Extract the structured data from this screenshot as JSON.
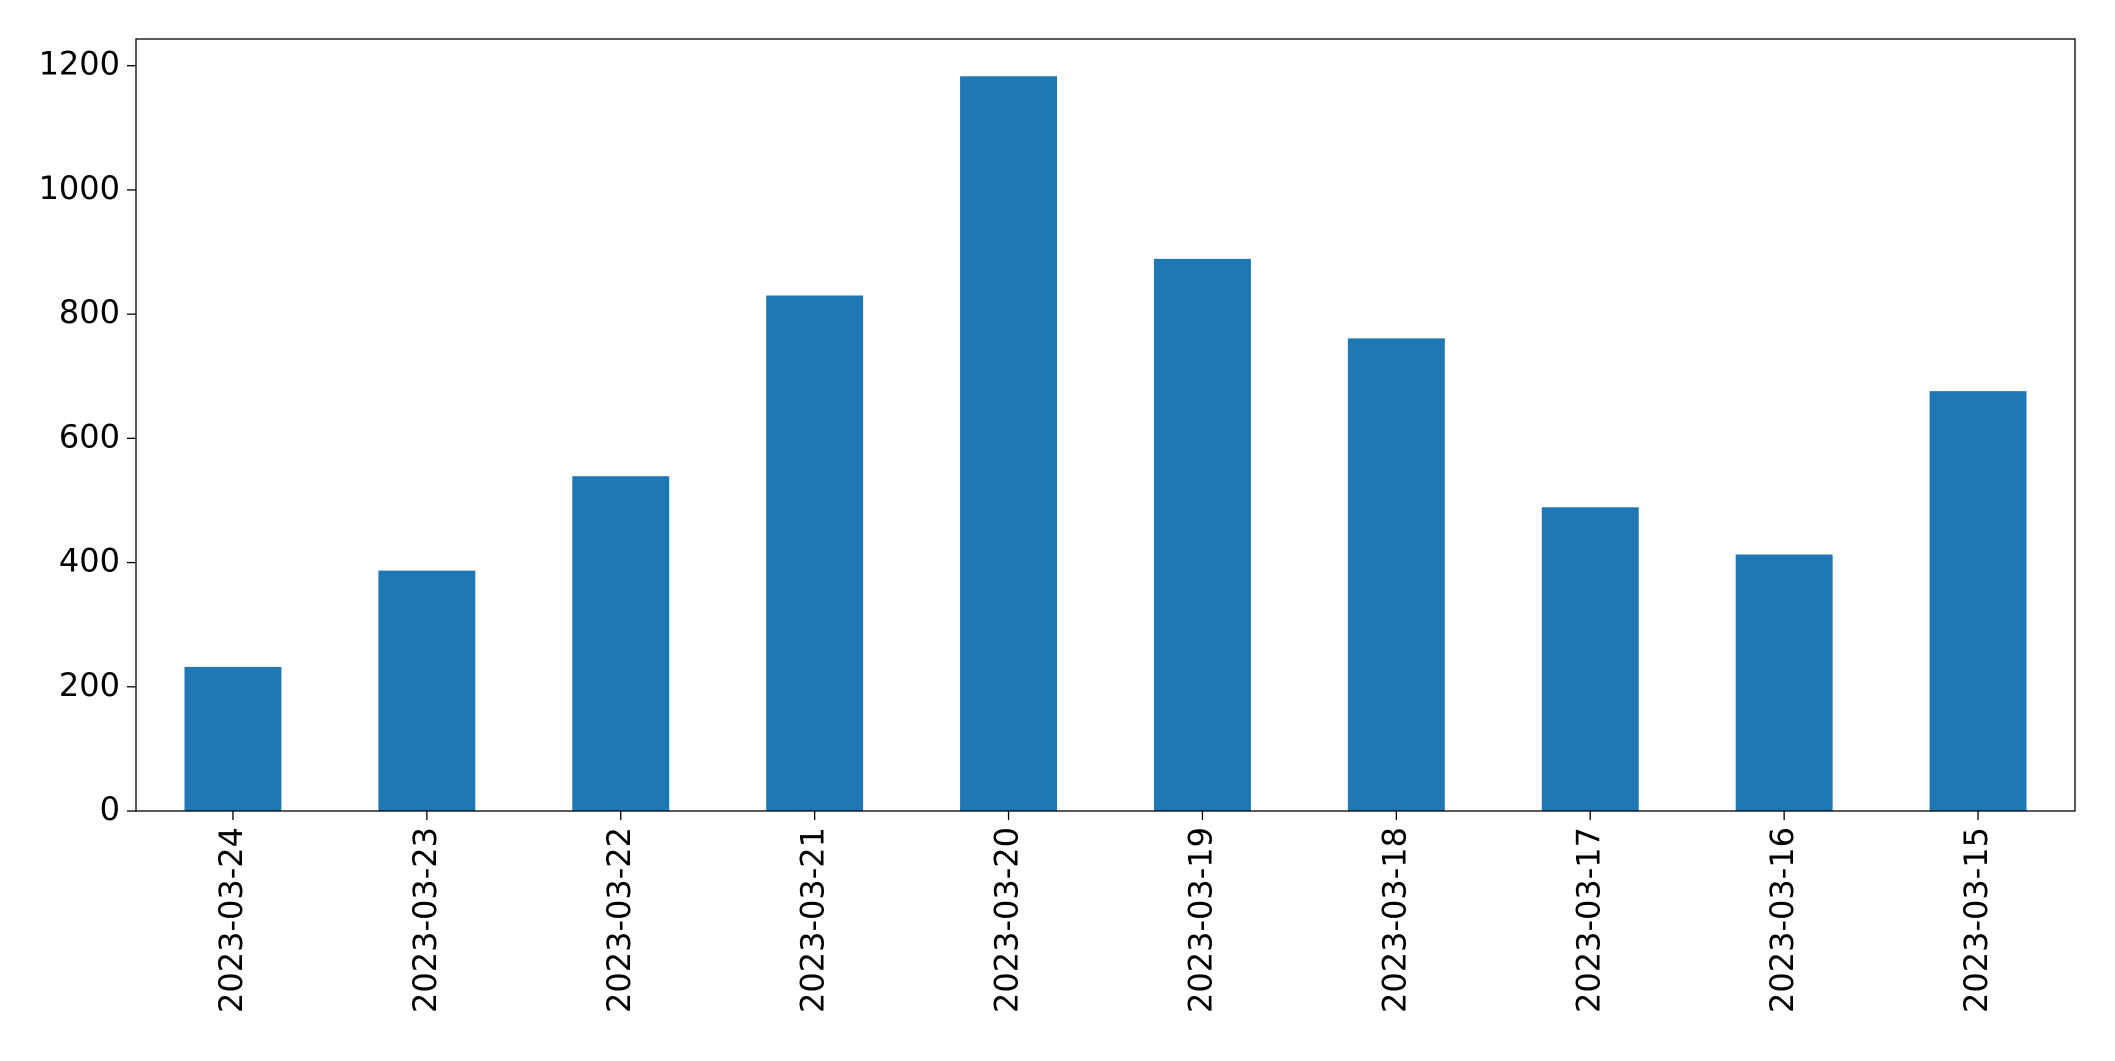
{
  "chart_data": {
    "type": "bar",
    "categories": [
      "2023-03-24",
      "2023-03-23",
      "2023-03-22",
      "2023-03-21",
      "2023-03-20",
      "2023-03-19",
      "2023-03-18",
      "2023-03-17",
      "2023-03-16",
      "2023-03-15"
    ],
    "values": [
      232,
      387,
      539,
      830,
      1183,
      889,
      761,
      489,
      413,
      676
    ],
    "color": "#1f77b4",
    "ylim": [
      0,
      1243
    ],
    "yticks": [
      0,
      200,
      400,
      600,
      800,
      1000,
      1200
    ],
    "grid": false
  }
}
